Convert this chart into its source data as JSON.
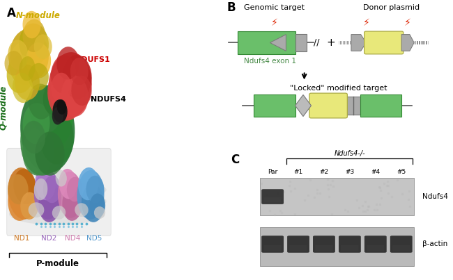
{
  "background_color": "#ffffff",
  "panel_label_fontsize": 12,
  "panel_B": {
    "genomic_target_label": "Genomic target",
    "donor_plasmid_label": "Donor plasmid",
    "ndufs4_exon1_label": "Ndufs4 exon 1",
    "locked_label": "“Locked” modified target",
    "exon_color": "#6abf6a",
    "bsd_color": "#e8e87a",
    "box_color": "#aaaaaa",
    "line_color": "#555555",
    "label_color_green": "#448844",
    "text_fontsize": 8
  },
  "panel_C": {
    "title": "Ndufs4-/-",
    "lanes": [
      "Par",
      "#1",
      "#2",
      "#3",
      "#4",
      "#5"
    ],
    "band1_label": "Ndufs4",
    "band2_label": "β-actin",
    "bg_color_top": "#c8c8c8",
    "bg_color_bot": "#bbbbbb",
    "text_fontsize": 7,
    "label_fontsize": 7.5
  }
}
